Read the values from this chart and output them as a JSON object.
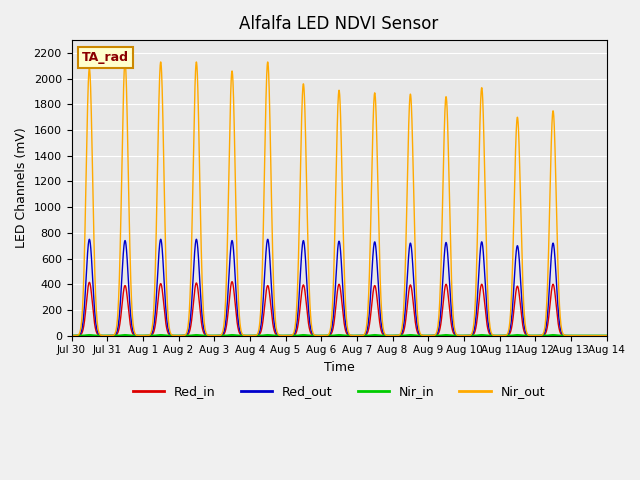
{
  "title": "Alfalfa LED NDVI Sensor",
  "ylabel": "LED Channels (mV)",
  "xlabel": "Time",
  "annotation": "TA_rad",
  "ylim": [
    0,
    2300
  ],
  "background_color": "#e8e8e8",
  "fig_background": "#f0f0f0",
  "series_colors": {
    "Red_in": "#dd0000",
    "Red_out": "#0000cc",
    "Nir_in": "#00cc00",
    "Nir_out": "#ffaa00"
  },
  "tick_dates": [
    "Jul 30",
    "Jul 31",
    "Aug 1",
    "Aug 2",
    "Aug 3",
    "Aug 4",
    "Aug 5",
    "Aug 6",
    "Aug 7",
    "Aug 8",
    "Aug 9",
    "Aug 10",
    "Aug 11",
    "Aug 12",
    "Aug 13",
    "Aug 14"
  ],
  "nir_out_peaks": [
    2080,
    2130,
    2130,
    2130,
    2060,
    2130,
    1960,
    1910,
    1890,
    1880,
    1860,
    1930,
    1700,
    1750
  ],
  "red_out_peaks": [
    750,
    740,
    750,
    750,
    740,
    750,
    740,
    735,
    730,
    720,
    725,
    730,
    700,
    720
  ],
  "red_in_peaks": [
    415,
    390,
    405,
    410,
    420,
    390,
    395,
    400,
    390,
    395,
    400,
    400,
    385,
    400
  ],
  "nir_in_peaks": [
    5,
    5,
    5,
    5,
    5,
    5,
    5,
    5,
    5,
    5,
    5,
    5,
    5,
    5
  ]
}
